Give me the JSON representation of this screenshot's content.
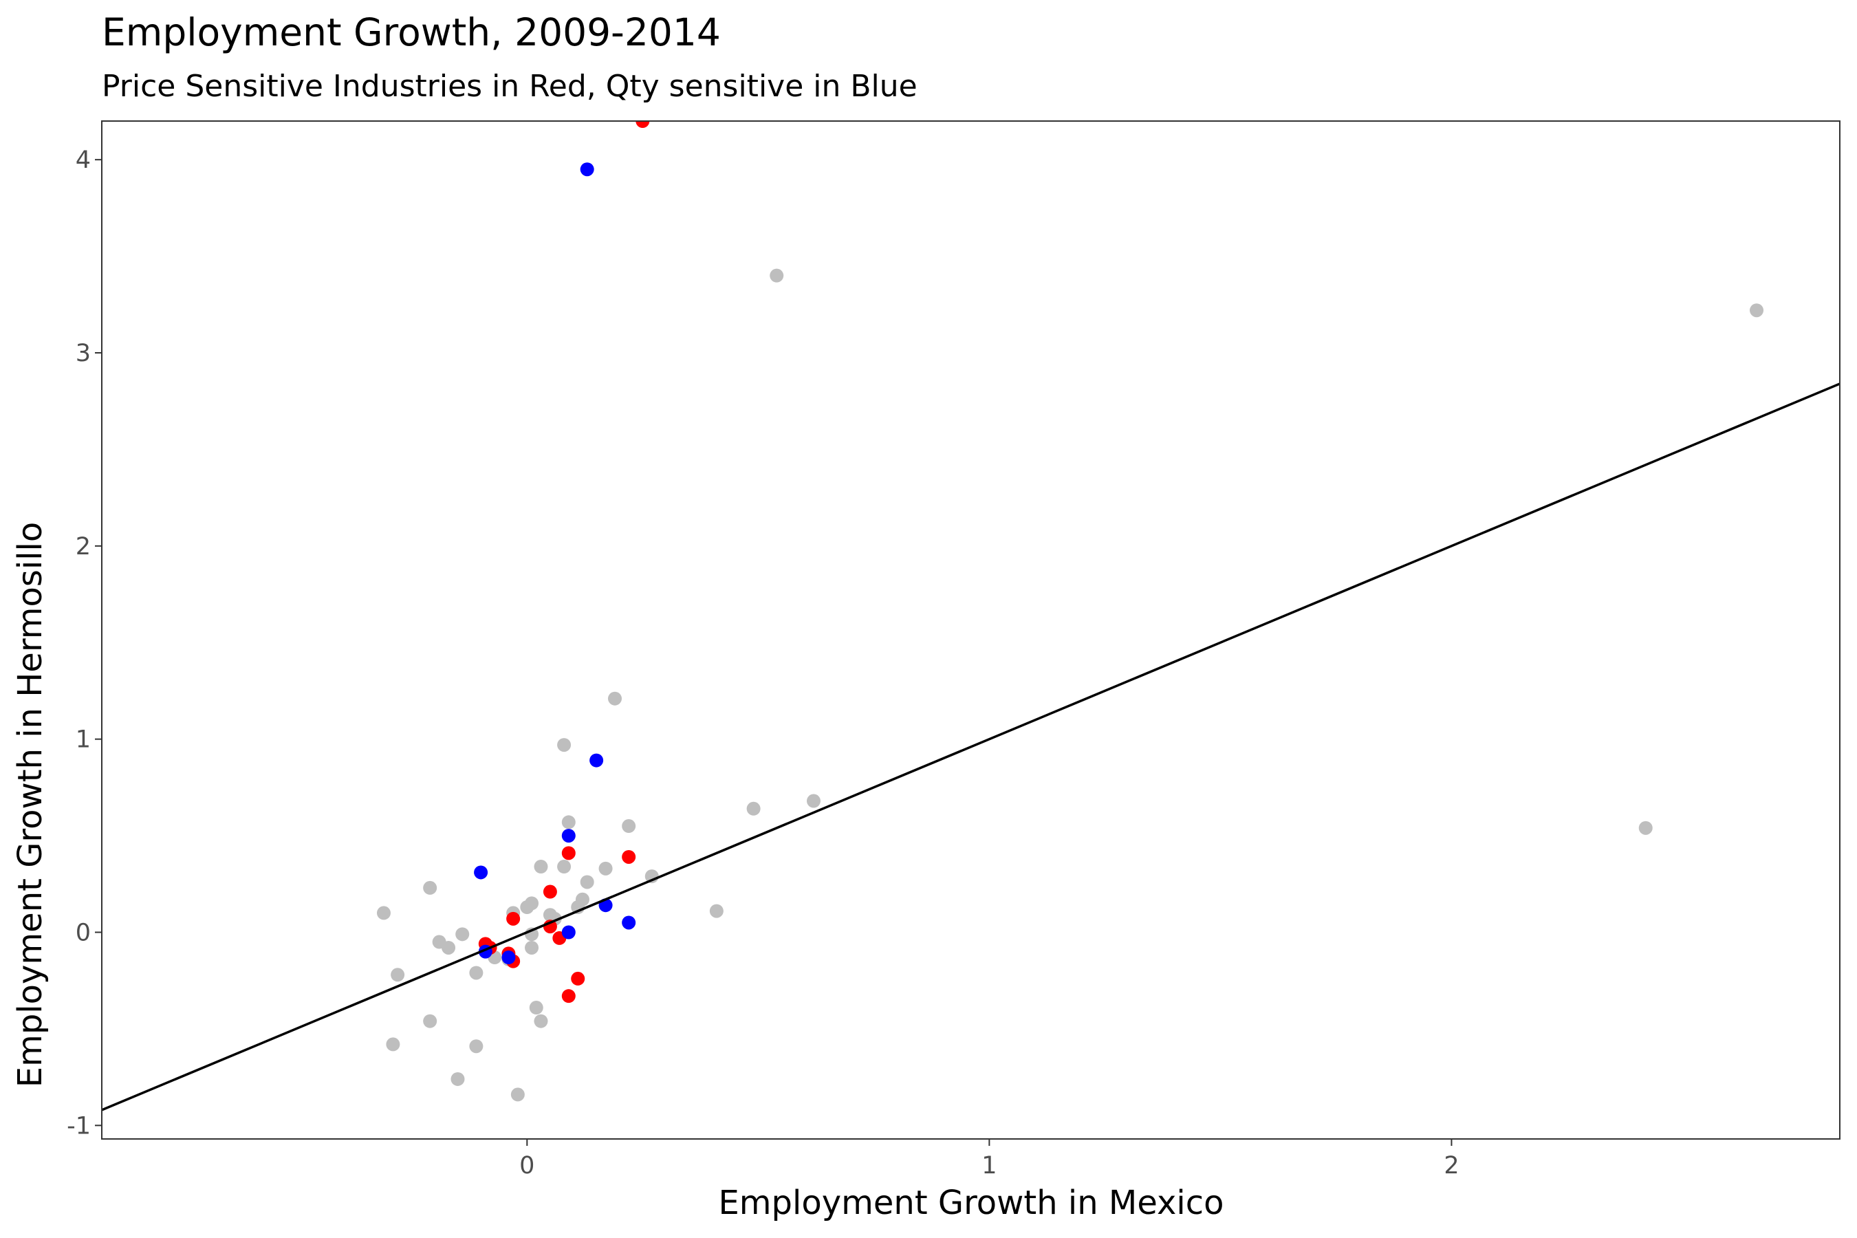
{
  "chart_data": {
    "type": "scatter",
    "title": "Employment Growth, 2009-2014",
    "subtitle": "Price Sensitive Industries in Red, Qty sensitive in Blue",
    "xlabel": "Employment Growth in Mexico",
    "ylabel": "Employment Growth in Hermosillo",
    "xlim": [
      -0.92,
      2.84
    ],
    "ylim": [
      -1.07,
      4.2
    ],
    "x_ticks": [
      0,
      1,
      2
    ],
    "y_ticks": [
      -1,
      0,
      1,
      2,
      3,
      4
    ],
    "grid": false,
    "legend": "none",
    "reference_line": {
      "slope": 1,
      "intercept": 0,
      "color": "#000000"
    },
    "colors": {
      "other": "#bebebe",
      "price_sensitive": "#ff0000",
      "qty_sensitive": "#0000ff"
    },
    "series": [
      {
        "group": "other",
        "color": "#bebebe",
        "points": [
          [
            -0.31,
            0.1
          ],
          [
            -0.29,
            -0.58
          ],
          [
            -0.28,
            -0.22
          ],
          [
            -0.21,
            0.23
          ],
          [
            -0.21,
            -0.46
          ],
          [
            -0.19,
            -0.05
          ],
          [
            -0.17,
            -0.08
          ],
          [
            -0.15,
            -0.76
          ],
          [
            -0.14,
            -0.01
          ],
          [
            -0.11,
            -0.21
          ],
          [
            -0.11,
            -0.59
          ],
          [
            -0.07,
            -0.13
          ],
          [
            -0.04,
            -0.14
          ],
          [
            -0.03,
            0.1
          ],
          [
            -0.02,
            -0.84
          ],
          [
            0.0,
            0.13
          ],
          [
            0.01,
            0.15
          ],
          [
            0.01,
            -0.08
          ],
          [
            0.01,
            -0.01
          ],
          [
            0.02,
            -0.39
          ],
          [
            0.03,
            -0.46
          ],
          [
            0.03,
            0.34
          ],
          [
            0.05,
            0.09
          ],
          [
            0.06,
            0.07
          ],
          [
            0.08,
            0.34
          ],
          [
            0.08,
            0.97
          ],
          [
            0.09,
            0.57
          ],
          [
            0.11,
            0.13
          ],
          [
            0.12,
            0.17
          ],
          [
            0.13,
            0.26
          ],
          [
            0.17,
            0.33
          ],
          [
            0.19,
            1.21
          ],
          [
            0.22,
            0.55
          ],
          [
            0.27,
            0.29
          ],
          [
            0.41,
            0.11
          ],
          [
            0.49,
            0.64
          ],
          [
            0.54,
            3.4
          ],
          [
            0.62,
            0.68
          ],
          [
            2.42,
            0.54
          ],
          [
            2.66,
            3.22
          ]
        ]
      },
      {
        "group": "price_sensitive",
        "color": "#ff0000",
        "points": [
          [
            -0.09,
            -0.06
          ],
          [
            -0.08,
            -0.08
          ],
          [
            -0.04,
            -0.11
          ],
          [
            -0.03,
            0.07
          ],
          [
            -0.03,
            -0.15
          ],
          [
            0.05,
            0.03
          ],
          [
            0.05,
            0.21
          ],
          [
            0.07,
            -0.03
          ],
          [
            0.09,
            0.41
          ],
          [
            0.09,
            -0.33
          ],
          [
            0.11,
            -0.24
          ],
          [
            0.22,
            0.39
          ],
          [
            0.25,
            4.2
          ]
        ]
      },
      {
        "group": "qty_sensitive",
        "color": "#0000ff",
        "points": [
          [
            -0.1,
            0.31
          ],
          [
            -0.09,
            -0.1
          ],
          [
            -0.04,
            -0.13
          ],
          [
            0.09,
            0.5
          ],
          [
            0.09,
            0.0
          ],
          [
            0.13,
            3.95
          ],
          [
            0.15,
            0.89
          ],
          [
            0.17,
            0.14
          ],
          [
            0.22,
            0.05
          ]
        ]
      }
    ]
  }
}
